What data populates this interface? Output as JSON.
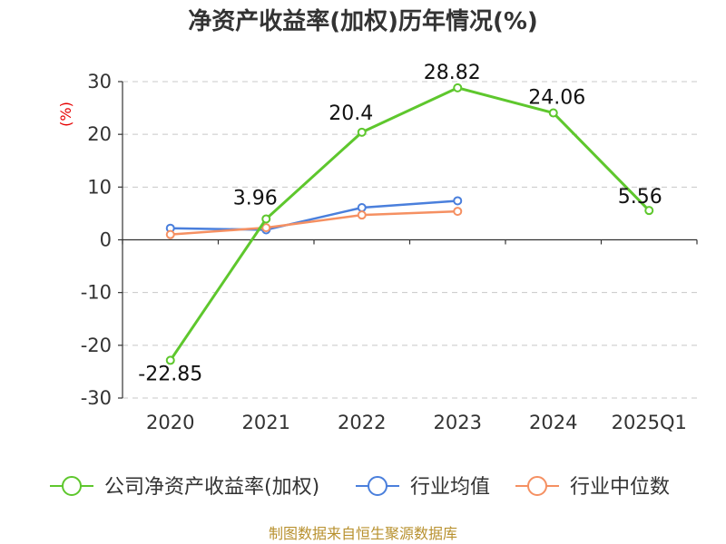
{
  "title": "净资产收益率(加权)历年情况(%)",
  "source": "制图数据来自恒生聚源数据库",
  "chart_data": {
    "type": "line",
    "title": "净资产收益率(加权)历年情况(%)",
    "ylabel": "(%)",
    "ylim": [
      -30,
      30
    ],
    "yticks": [
      "30",
      "20",
      "10",
      "0",
      "-10",
      "-20",
      "-30"
    ],
    "categories": [
      "2020",
      "2021",
      "2022",
      "2023",
      "2024",
      "2025Q1"
    ],
    "grid": true,
    "legend_position": "bottom",
    "series": [
      {
        "name": "公司净资产收益率(加权)",
        "color": "#5ec72d",
        "values": [
          -22.85,
          3.96,
          20.4,
          28.82,
          24.06,
          5.56
        ],
        "labels": [
          "-22.85",
          "3.96",
          "20.4",
          "28.82",
          "24.06",
          "5.56"
        ]
      },
      {
        "name": "行业均值",
        "color": "#4a7fdc",
        "values": [
          2.2,
          1.9,
          6.1,
          7.4,
          null,
          null
        ]
      },
      {
        "name": "行业中位数",
        "color": "#f59062",
        "values": [
          1.0,
          2.3,
          4.7,
          5.4,
          null,
          null
        ]
      }
    ]
  }
}
